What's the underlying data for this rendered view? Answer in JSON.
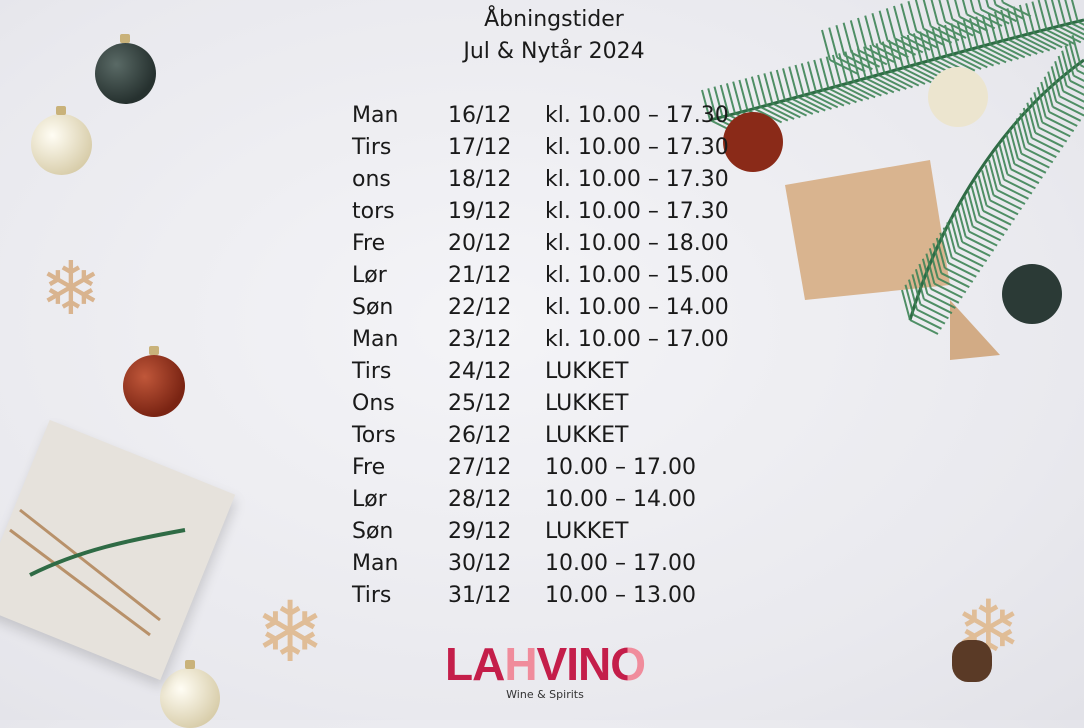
{
  "title": {
    "line1": "Åbningstider",
    "line2": "Jul & Nytår 2024"
  },
  "schedule": [
    {
      "day": "Man",
      "date": "16/12",
      "hours": "kl. 10.00 – 17.30"
    },
    {
      "day": "Tirs",
      "date": "17/12",
      "hours": "kl. 10.00 – 17.30"
    },
    {
      "day": "ons",
      "date": "18/12",
      "hours": "kl. 10.00 – 17.30"
    },
    {
      "day": "tors",
      "date": "19/12",
      "hours": "kl. 10.00 – 17.30"
    },
    {
      "day": "Fre",
      "date": "20/12",
      "hours": "kl. 10.00 – 18.00"
    },
    {
      "day": "Lør",
      "date": "21/12",
      "hours": "kl. 10.00 – 15.00"
    },
    {
      "day": "Søn",
      "date": "22/12",
      "hours": "kl. 10.00 – 14.00"
    },
    {
      "day": "Man",
      "date": "23/12",
      "hours": "kl. 10.00 – 17.00"
    },
    {
      "day": "Tirs",
      "date": "24/12",
      "hours": "LUKKET"
    },
    {
      "day": "Ons",
      "date": "25/12",
      "hours": "LUKKET"
    },
    {
      "day": "Tors",
      "date": "26/12",
      "hours": "LUKKET"
    },
    {
      "day": "Fre",
      "date": "27/12",
      "hours": "10.00 – 17.00"
    },
    {
      "day": "Lør",
      "date": "28/12",
      "hours": "10.00 – 14.00"
    },
    {
      "day": "Søn",
      "date": "29/12",
      "hours": "LUKKET"
    },
    {
      "day": "Man",
      "date": "30/12",
      "hours": "10.00 – 17.00"
    },
    {
      "day": "Tirs",
      "date": "31/12",
      "hours": "10.00 – 13.00"
    }
  ],
  "logo": {
    "wordmark": "LAHVINO",
    "tagline": "Wine & Spirits",
    "brand_color": "#c41e4a",
    "accent_color": "#f08c9c"
  }
}
